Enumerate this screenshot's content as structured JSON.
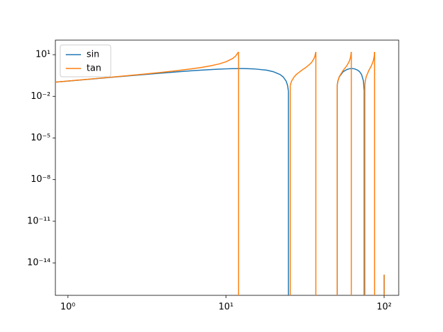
{
  "chart_data": {
    "type": "line",
    "x": [
      0.8,
      1,
      1.5,
      2,
      3,
      4,
      5,
      6,
      7,
      8,
      9,
      10,
      11,
      11.5,
      12,
      13,
      15,
      18,
      20,
      22,
      23,
      24,
      24.5,
      24.8,
      25.5,
      26,
      27,
      28,
      30,
      32,
      34,
      35,
      36,
      36.5,
      37,
      38,
      45,
      50.5,
      51,
      52,
      55,
      58,
      60,
      61,
      61.5,
      62,
      63,
      65,
      68,
      70,
      72,
      74,
      74.8,
      75.5,
      76,
      77,
      80,
      83,
      85,
      86,
      86.5,
      87,
      88,
      95,
      100
    ],
    "series": [
      {
        "name": "sin",
        "color": "#1f77b4",
        "values": [
          0.1004,
          0.1253,
          0.1874,
          0.2487,
          0.3681,
          0.4818,
          0.5878,
          0.6845,
          0.7705,
          0.8443,
          0.9048,
          0.9511,
          0.9823,
          0.9921,
          0.998,
          0.998,
          0.9511,
          0.7705,
          0.5878,
          0.3681,
          0.2487,
          0.1253,
          0.0628,
          0.0251,
          null,
          null,
          null,
          null,
          null,
          null,
          null,
          null,
          null,
          null,
          null,
          null,
          null,
          0.0628,
          0.1253,
          0.2487,
          0.5878,
          0.8443,
          0.9511,
          0.9823,
          0.9921,
          0.998,
          0.998,
          0.9511,
          0.7705,
          0.5878,
          0.3681,
          0.1253,
          0.0251,
          null,
          null,
          null,
          null,
          null,
          null,
          null,
          null,
          null,
          null,
          null,
          1.4e-15
        ]
      },
      {
        "name": "tan",
        "color": "#ff7f0e",
        "values": [
          0.1009,
          0.1263,
          0.1908,
          0.2568,
          0.3959,
          0.5498,
          0.7265,
          0.9391,
          1.2088,
          1.5757,
          2.1251,
          3.0777,
          5.2422,
          7.9158,
          15.895,
          null,
          null,
          null,
          null,
          null,
          null,
          null,
          null,
          null,
          0.0629,
          0.1263,
          0.2568,
          0.3959,
          0.7265,
          1.2088,
          2.1251,
          3.0777,
          5.2422,
          7.9158,
          15.895,
          null,
          null,
          0.0629,
          0.1263,
          0.2568,
          0.7265,
          1.5757,
          3.0777,
          5.2422,
          7.9158,
          15.895,
          null,
          null,
          null,
          null,
          null,
          null,
          null,
          0.0629,
          0.1263,
          0.2568,
          0.7265,
          1.5757,
          3.0777,
          5.2422,
          7.9158,
          15.895,
          null,
          null,
          1.4e-15
        ]
      }
    ],
    "xlog": true,
    "ylog": true,
    "xlim": [
      0.834,
      123.6
    ],
    "ylim": [
      4.6e-17,
      112
    ],
    "xticks": [
      {
        "value": 1,
        "label": "10⁰"
      },
      {
        "value": 10,
        "label": "10¹"
      },
      {
        "value": 100,
        "label": "10²"
      }
    ],
    "yticks": [
      {
        "value": 1e-14,
        "label": "10⁻¹⁴"
      },
      {
        "value": 1e-11,
        "label": "10⁻¹¹"
      },
      {
        "value": 1e-08,
        "label": "10⁻⁸"
      },
      {
        "value": 1e-05,
        "label": "10⁻⁵"
      },
      {
        "value": 0.01,
        "label": "10⁻²"
      },
      {
        "value": 10,
        "label": "10¹"
      }
    ],
    "legend": "upper left"
  }
}
